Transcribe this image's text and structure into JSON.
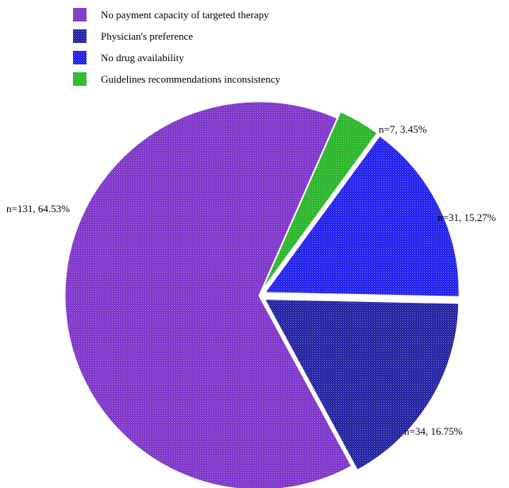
{
  "chart_data": {
    "type": "pie",
    "legend_placement": "top",
    "start_angle_deg": 151.5,
    "direction": "clockwise",
    "series": [
      {
        "name": "No payment capacity of targeted therapy",
        "n": 131,
        "percent": 64.53,
        "label": "n=131, 64.53%",
        "color": "#7a2ec8"
      },
      {
        "name": "Guidelines recommendations inconsistency",
        "n": 7,
        "percent": 3.45,
        "label": "n=7, 3.45%",
        "color": "#22b322"
      },
      {
        "name": "No drug availability",
        "n": 31,
        "percent": 15.27,
        "label": "n=31, 15.27%",
        "color": "#1a1aee"
      },
      {
        "name": "Physician's preference",
        "n": 34,
        "percent": 16.75,
        "label": "n=34, 16.75%",
        "color": "#1c1c9e"
      }
    ],
    "legend_order": [
      "No payment capacity of targeted therapy",
      "Physician's preference",
      "No drug availability",
      "Guidelines recommendations inconsistency"
    ]
  }
}
